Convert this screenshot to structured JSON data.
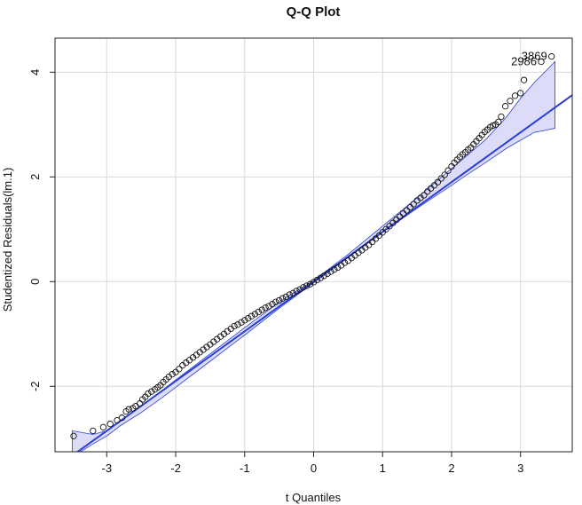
{
  "chart_data": {
    "type": "scatter",
    "title": "Q-Q Plot",
    "xlabel": "t Quantiles",
    "ylabel": "Studentized Residuals(lm.1)",
    "xlim": [
      -3.75,
      3.75
    ],
    "ylim": [
      -3.25,
      4.65
    ],
    "xticks": [
      -3,
      -2,
      -1,
      0,
      1,
      2,
      3
    ],
    "yticks": [
      -2,
      0,
      2,
      4
    ],
    "grid": true,
    "reference_line": {
      "intercept": 0.0,
      "slope": 0.95,
      "color": "#2a3fd6"
    },
    "confidence_band": {
      "fill": "#dcdcf8",
      "edge": "#2a3fd6",
      "x": [
        -3.5,
        -3.2,
        -3.0,
        -2.8,
        -2.5,
        -2.2,
        -2.0,
        -1.5,
        -1.0,
        -0.5,
        0.0,
        0.5,
        1.0,
        1.5,
        2.0,
        2.2,
        2.5,
        2.8,
        3.0,
        3.2,
        3.5
      ],
      "lower": [
        -3.35,
        -3.1,
        -2.95,
        -2.75,
        -2.5,
        -2.22,
        -2.02,
        -1.52,
        -1.02,
        -0.51,
        -0.02,
        0.46,
        0.94,
        1.4,
        1.84,
        2.02,
        2.28,
        2.55,
        2.7,
        2.85,
        2.93
      ],
      "upper": [
        -2.85,
        -2.92,
        -2.85,
        -2.66,
        -2.37,
        -2.08,
        -1.88,
        -1.38,
        -0.88,
        -0.39,
        0.02,
        0.52,
        1.06,
        1.6,
        2.16,
        2.38,
        2.72,
        3.15,
        3.5,
        3.8,
        4.2
      ]
    },
    "series": [
      {
        "name": "residuals",
        "marker": "open-circle",
        "x": [
          -3.48,
          -3.2,
          -3.05,
          -2.95,
          -2.85,
          -2.78,
          -2.72,
          -2.68,
          -2.62,
          -2.58,
          -2.52,
          -2.48,
          -2.44,
          -2.4,
          -2.35,
          -2.3,
          -2.26,
          -2.22,
          -2.18,
          -2.14,
          -2.1,
          -2.05,
          -2.0,
          -1.95,
          -1.9,
          -1.85,
          -1.8,
          -1.75,
          -1.7,
          -1.65,
          -1.6,
          -1.55,
          -1.5,
          -1.45,
          -1.4,
          -1.35,
          -1.3,
          -1.25,
          -1.2,
          -1.15,
          -1.1,
          -1.05,
          -1.0,
          -0.95,
          -0.9,
          -0.85,
          -0.8,
          -0.75,
          -0.7,
          -0.65,
          -0.6,
          -0.55,
          -0.5,
          -0.45,
          -0.4,
          -0.35,
          -0.3,
          -0.25,
          -0.2,
          -0.15,
          -0.1,
          -0.05,
          0.0,
          0.05,
          0.1,
          0.15,
          0.2,
          0.25,
          0.3,
          0.35,
          0.4,
          0.45,
          0.5,
          0.55,
          0.6,
          0.65,
          0.7,
          0.75,
          0.8,
          0.85,
          0.9,
          0.95,
          1.0,
          1.05,
          1.1,
          1.15,
          1.2,
          1.25,
          1.3,
          1.35,
          1.4,
          1.45,
          1.5,
          1.55,
          1.6,
          1.65,
          1.7,
          1.75,
          1.8,
          1.85,
          1.9,
          1.95,
          2.0,
          2.04,
          2.08,
          2.12,
          2.16,
          2.2,
          2.24,
          2.28,
          2.32,
          2.36,
          2.4,
          2.44,
          2.48,
          2.52,
          2.56,
          2.6,
          2.64,
          2.68,
          2.72,
          2.78,
          2.85,
          2.92,
          3.0,
          3.05,
          3.3,
          3.45
        ],
        "y": [
          -2.95,
          -2.85,
          -2.78,
          -2.72,
          -2.65,
          -2.6,
          -2.48,
          -2.44,
          -2.42,
          -2.38,
          -2.33,
          -2.25,
          -2.2,
          -2.14,
          -2.1,
          -2.06,
          -2.02,
          -1.98,
          -1.92,
          -1.87,
          -1.82,
          -1.77,
          -1.73,
          -1.67,
          -1.6,
          -1.55,
          -1.5,
          -1.45,
          -1.4,
          -1.35,
          -1.3,
          -1.25,
          -1.2,
          -1.15,
          -1.1,
          -1.05,
          -1.0,
          -0.95,
          -0.9,
          -0.85,
          -0.82,
          -0.78,
          -0.74,
          -0.7,
          -0.66,
          -0.62,
          -0.58,
          -0.54,
          -0.5,
          -0.47,
          -0.43,
          -0.39,
          -0.36,
          -0.32,
          -0.29,
          -0.25,
          -0.22,
          -0.18,
          -0.15,
          -0.11,
          -0.08,
          -0.05,
          -0.01,
          0.03,
          0.07,
          0.11,
          0.15,
          0.19,
          0.23,
          0.27,
          0.31,
          0.36,
          0.4,
          0.45,
          0.5,
          0.55,
          0.6,
          0.65,
          0.7,
          0.76,
          0.82,
          0.88,
          0.94,
          1.0,
          1.06,
          1.12,
          1.18,
          1.24,
          1.3,
          1.36,
          1.42,
          1.48,
          1.55,
          1.6,
          1.65,
          1.72,
          1.78,
          1.84,
          1.9,
          1.97,
          2.04,
          2.12,
          2.2,
          2.27,
          2.33,
          2.38,
          2.43,
          2.47,
          2.52,
          2.56,
          2.62,
          2.68,
          2.74,
          2.8,
          2.86,
          2.9,
          2.95,
          2.98,
          3.0,
          3.05,
          3.15,
          3.35,
          3.45,
          3.55,
          3.6,
          3.85,
          4.2,
          4.3
        ]
      }
    ],
    "annotations": [
      {
        "text": "3869",
        "x": 3.45,
        "y": 4.3
      },
      {
        "text": "2986",
        "x": 3.3,
        "y": 4.2
      }
    ]
  }
}
